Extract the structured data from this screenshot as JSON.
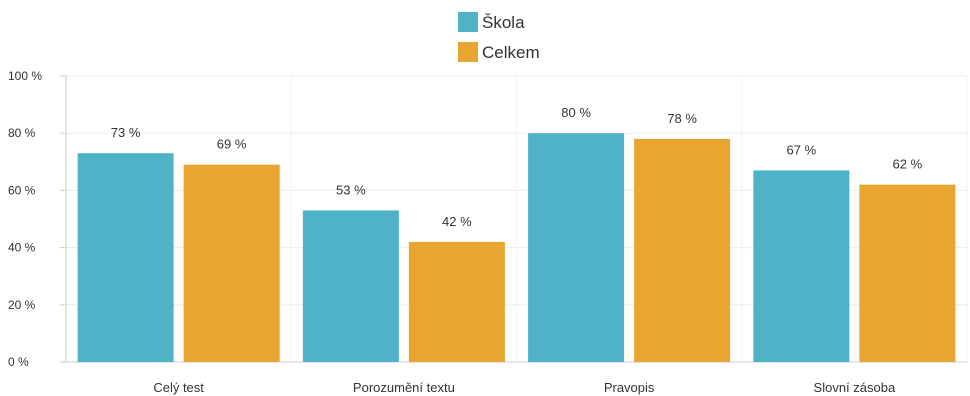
{
  "chart_data": {
    "type": "bar",
    "categories": [
      "Celý test",
      "Porozumění textu",
      "Pravopis",
      "Slovní zásoba"
    ],
    "series": [
      {
        "name": "Škola",
        "values": [
          73,
          53,
          80,
          67
        ],
        "labels": [
          "73 %",
          "53 %",
          "80 %",
          "67 %"
        ],
        "color": "#4fb3c8"
      },
      {
        "name": "Celkem",
        "values": [
          69,
          42,
          78,
          62
        ],
        "labels": [
          "69 %",
          "42 %",
          "78 %",
          "62 %"
        ],
        "color": "#e8a530"
      }
    ],
    "ylim": [
      0,
      100
    ],
    "yticks": [
      0,
      20,
      40,
      60,
      80,
      100
    ],
    "ytick_labels": [
      "0 %",
      "20 %",
      "40 %",
      "60 %",
      "80 %",
      "100 %"
    ],
    "grid": true,
    "legend_position": "top-center"
  }
}
